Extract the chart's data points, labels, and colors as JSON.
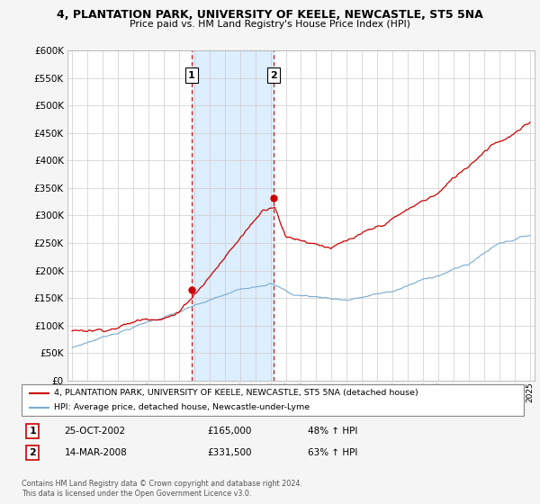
{
  "title_line1": "4, PLANTATION PARK, UNIVERSITY OF KEELE, NEWCASTLE, ST5 5NA",
  "title_line2": "Price paid vs. HM Land Registry's House Price Index (HPI)",
  "ylim": [
    0,
    600000
  ],
  "yticks": [
    0,
    50000,
    100000,
    150000,
    200000,
    250000,
    300000,
    350000,
    400000,
    450000,
    500000,
    550000,
    600000
  ],
  "shade_color": "#ddeeff",
  "transaction1": {
    "date": "2002-10-25",
    "price": 165000,
    "label": "1",
    "x": 2002.82
  },
  "transaction2": {
    "date": "2008-03-14",
    "price": 331500,
    "label": "2",
    "x": 2008.21
  },
  "legend_line1": "4, PLANTATION PARK, UNIVERSITY OF KEELE, NEWCASTLE, ST5 5NA (detached house)",
  "legend_line2": "HPI: Average price, detached house, Newcastle-under-Lyme",
  "note1_label": "1",
  "note1_date": "25-OCT-2002",
  "note1_price": "£165,000",
  "note1_hpi": "48% ↑ HPI",
  "note2_label": "2",
  "note2_date": "14-MAR-2008",
  "note2_price": "£331,500",
  "note2_hpi": "63% ↑ HPI",
  "footer": "Contains HM Land Registry data © Crown copyright and database right 2024.\nThis data is licensed under the Open Government Licence v3.0.",
  "red_color": "#cc0000",
  "blue_color": "#7aaad0",
  "plot_bg": "#ffffff",
  "fig_bg": "#f5f5f5"
}
